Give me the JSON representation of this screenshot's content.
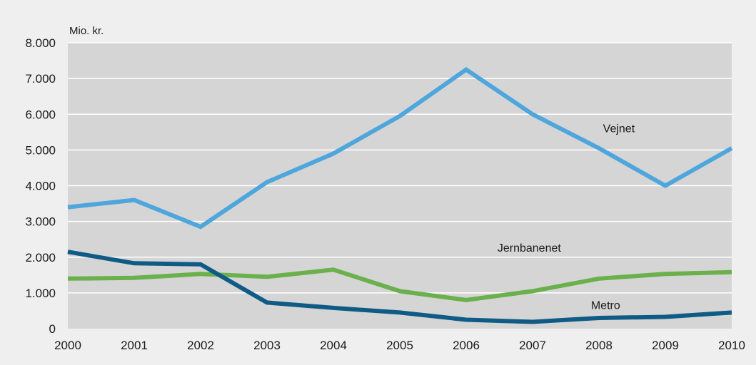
{
  "chart_data": {
    "type": "line",
    "ylabel": "Mio. kr.",
    "x": [
      "2000",
      "2001",
      "2002",
      "2003",
      "2004",
      "2005",
      "2006",
      "2007",
      "2008",
      "2009",
      "2010"
    ],
    "y_ticks": [
      "0",
      "1.000",
      "2.000",
      "3.000",
      "4.000",
      "5.000",
      "6.000",
      "7.000",
      "8.000"
    ],
    "ylim": [
      0,
      8000
    ],
    "grid": true,
    "legend": "inline",
    "series": [
      {
        "name": "Vejnet",
        "color": "#4ea6dc",
        "values": [
          3400,
          3600,
          2850,
          4100,
          4900,
          5950,
          7250,
          6000,
          5050,
          4000,
          5050
        ]
      },
      {
        "name": "Jernbanenet",
        "color": "#6ab04c",
        "values": [
          1400,
          1420,
          1530,
          1450,
          1650,
          1050,
          800,
          1050,
          1400,
          1530,
          1580
        ]
      },
      {
        "name": "Metro",
        "color": "#0f5b85",
        "values": [
          2150,
          1830,
          1800,
          730,
          580,
          450,
          250,
          190,
          300,
          330,
          450
        ]
      }
    ]
  }
}
